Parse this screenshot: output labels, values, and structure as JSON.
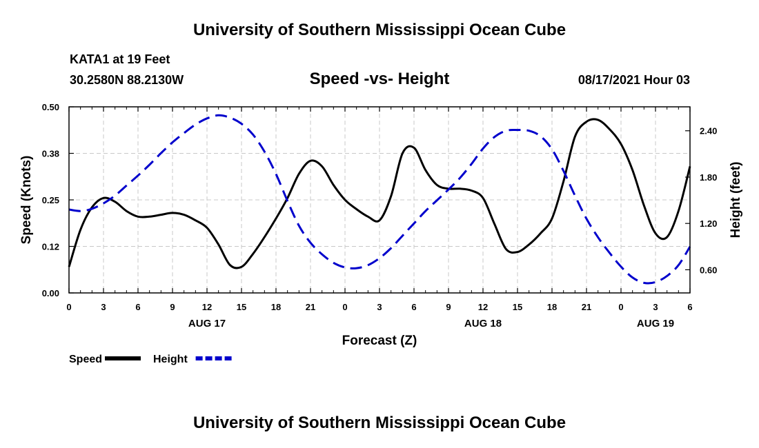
{
  "header": {
    "title": "University of Southern Mississippi Ocean Cube",
    "station": "KATA1 at 19 Feet",
    "coords": "30.2580N  88.2130W",
    "subtitle": "Speed -vs- Height",
    "runtime": "08/17/2021 Hour 03"
  },
  "footer": {
    "title": "University of Southern Mississippi Ocean Cube"
  },
  "chart_data": {
    "type": "line",
    "title": "Speed -vs- Height",
    "xlabel": "Forecast (Z)",
    "ylabel": "Speed (Knots)",
    "y2label": "Height (feet)",
    "x_hours": [
      0,
      54
    ],
    "ylim": [
      0,
      0.5
    ],
    "y2lim": [
      0.3,
      2.71
    ],
    "xticks": {
      "labels": [
        "0",
        "3",
        "6",
        "9",
        "12",
        "15",
        "18",
        "21",
        "0",
        "3",
        "6",
        "9",
        "12",
        "15",
        "18",
        "21",
        "0",
        "3",
        "6"
      ],
      "hours": [
        0,
        3,
        6,
        9,
        12,
        15,
        18,
        21,
        24,
        27,
        30,
        33,
        36,
        39,
        42,
        45,
        48,
        51,
        54
      ]
    },
    "yticks": {
      "labels": [
        "0.00",
        "0.12",
        "0.25",
        "0.38",
        "0.50"
      ],
      "values": [
        0,
        0.125,
        0.25,
        0.375,
        0.5
      ]
    },
    "y2ticks": {
      "labels": [
        "0.60",
        "1.20",
        "1.80",
        "2.40"
      ],
      "values": [
        0.6,
        1.2,
        1.8,
        2.4
      ]
    },
    "date_labels": [
      {
        "text": "AUG 17",
        "hour": 12
      },
      {
        "text": "AUG 18",
        "hour": 36
      },
      {
        "text": "AUG 19",
        "hour": 51
      }
    ],
    "grid": true,
    "legend_position": "bottom-left",
    "series": [
      {
        "name": "Speed",
        "axis": "left",
        "color": "#000000",
        "style": "solid",
        "x": [
          0,
          1,
          2,
          3,
          4,
          5,
          6,
          7,
          8,
          9,
          10,
          11,
          12,
          13,
          14,
          15,
          16,
          17,
          18,
          19,
          20,
          21,
          22,
          23,
          24,
          25,
          26,
          27,
          28,
          29,
          30,
          31,
          32,
          33,
          34,
          35,
          36,
          37,
          38,
          39,
          40,
          41,
          42,
          43,
          44,
          45,
          46,
          47,
          48,
          49,
          50,
          51,
          52,
          53,
          54
        ],
        "values": [
          0.07,
          0.17,
          0.23,
          0.255,
          0.245,
          0.22,
          0.205,
          0.205,
          0.21,
          0.215,
          0.21,
          0.195,
          0.175,
          0.13,
          0.075,
          0.07,
          0.105,
          0.15,
          0.2,
          0.255,
          0.32,
          0.355,
          0.34,
          0.29,
          0.25,
          0.225,
          0.205,
          0.195,
          0.26,
          0.375,
          0.39,
          0.33,
          0.29,
          0.28,
          0.28,
          0.275,
          0.255,
          0.185,
          0.118,
          0.11,
          0.13,
          0.16,
          0.2,
          0.3,
          0.42,
          0.46,
          0.465,
          0.44,
          0.4,
          0.33,
          0.235,
          0.16,
          0.15,
          0.22,
          0.34
        ]
      },
      {
        "name": "Height",
        "axis": "right",
        "color": "#0000cc",
        "style": "dashed",
        "x": [
          0,
          1,
          2,
          3,
          4,
          5,
          6,
          7,
          8,
          9,
          10,
          11,
          12,
          13,
          14,
          15,
          16,
          17,
          18,
          19,
          20,
          21,
          22,
          23,
          24,
          25,
          26,
          27,
          28,
          29,
          30,
          31,
          32,
          33,
          34,
          35,
          36,
          37,
          38,
          39,
          40,
          41,
          42,
          43,
          44,
          45,
          46,
          47,
          48,
          49,
          50,
          51,
          52,
          53,
          54
        ],
        "values": [
          1.38,
          1.36,
          1.39,
          1.46,
          1.56,
          1.69,
          1.82,
          1.96,
          2.11,
          2.25,
          2.37,
          2.48,
          2.56,
          2.6,
          2.57,
          2.49,
          2.35,
          2.13,
          1.84,
          1.49,
          1.17,
          0.95,
          0.8,
          0.69,
          0.63,
          0.62,
          0.66,
          0.75,
          0.88,
          1.04,
          1.2,
          1.36,
          1.5,
          1.64,
          1.79,
          1.97,
          2.17,
          2.32,
          2.4,
          2.41,
          2.4,
          2.33,
          2.16,
          1.88,
          1.56,
          1.26,
          1.02,
          0.82,
          0.64,
          0.5,
          0.43,
          0.44,
          0.52,
          0.66,
          0.9
        ]
      }
    ]
  }
}
